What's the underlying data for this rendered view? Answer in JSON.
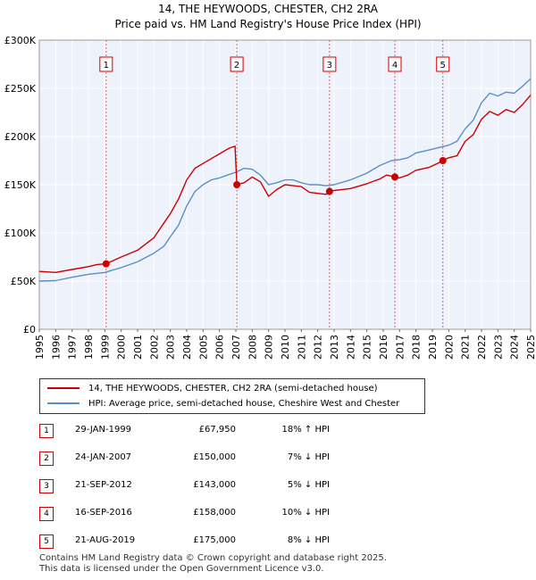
{
  "header": {
    "title": "14, THE HEYWOODS, CHESTER, CH2 2RA",
    "subtitle": "Price paid vs. HM Land Registry's House Price Index (HPI)"
  },
  "chart_data": {
    "type": "line",
    "title": "14, THE HEYWOODS, CHESTER, CH2 2RA",
    "subtitle": "Price paid vs. HM Land Registry's House Price Index (HPI)",
    "xlim": [
      1995,
      2025
    ],
    "ylim": [
      0,
      300000
    ],
    "y_ticks": [
      {
        "value": 0,
        "label": "£0"
      },
      {
        "value": 50000,
        "label": "£50K"
      },
      {
        "value": 100000,
        "label": "£100K"
      },
      {
        "value": 150000,
        "label": "£150K"
      },
      {
        "value": 200000,
        "label": "£200K"
      },
      {
        "value": 250000,
        "label": "£250K"
      },
      {
        "value": 300000,
        "label": "£300K"
      }
    ],
    "x_ticks": [
      "1995",
      "1996",
      "1997",
      "1998",
      "1999",
      "2000",
      "2001",
      "2002",
      "2003",
      "2004",
      "2005",
      "2006",
      "2007",
      "2008",
      "2009",
      "2010",
      "2011",
      "2012",
      "2013",
      "2014",
      "2015",
      "2016",
      "2017",
      "2018",
      "2019",
      "2020",
      "2021",
      "2022",
      "2023",
      "2024",
      "2025"
    ],
    "series": [
      {
        "name": "14, THE HEYWOODS, CHESTER, CH2 2RA (semi-detached house)",
        "color": "#cc0000",
        "points": [
          [
            1995,
            60000
          ],
          [
            1996,
            59000
          ],
          [
            1997,
            62000
          ],
          [
            1998,
            65000
          ],
          [
            1998.5,
            67000
          ],
          [
            1999.08,
            67950
          ],
          [
            2000,
            75000
          ],
          [
            2001,
            82000
          ],
          [
            2002,
            95000
          ],
          [
            2002.6,
            110000
          ],
          [
            2003,
            120000
          ],
          [
            2003.5,
            135000
          ],
          [
            2004,
            155000
          ],
          [
            2004.5,
            167000
          ],
          [
            2005,
            172000
          ],
          [
            2005.5,
            177000
          ],
          [
            2006,
            182000
          ],
          [
            2006.6,
            188000
          ],
          [
            2006.95,
            190000
          ],
          [
            2007.06,
            150000
          ],
          [
            2007.5,
            152000
          ],
          [
            2008,
            158000
          ],
          [
            2008.5,
            153000
          ],
          [
            2009,
            138000
          ],
          [
            2009.5,
            145000
          ],
          [
            2010,
            150000
          ],
          [
            2010.5,
            149000
          ],
          [
            2011,
            148000
          ],
          [
            2011.5,
            142000
          ],
          [
            2012,
            141000
          ],
          [
            2012.5,
            140000
          ],
          [
            2012.72,
            143000
          ],
          [
            2013,
            144000
          ],
          [
            2014,
            146000
          ],
          [
            2015,
            151000
          ],
          [
            2015.8,
            156000
          ],
          [
            2016.2,
            160000
          ],
          [
            2016.71,
            158000
          ],
          [
            2017,
            157000
          ],
          [
            2017.5,
            160000
          ],
          [
            2018,
            165000
          ],
          [
            2018.8,
            168000
          ],
          [
            2019.3,
            172000
          ],
          [
            2019.64,
            175000
          ],
          [
            2020,
            178000
          ],
          [
            2020.5,
            180000
          ],
          [
            2021,
            195000
          ],
          [
            2021.5,
            202000
          ],
          [
            2022,
            218000
          ],
          [
            2022.5,
            226000
          ],
          [
            2023,
            222000
          ],
          [
            2023.5,
            228000
          ],
          [
            2024,
            225000
          ],
          [
            2024.5,
            233000
          ],
          [
            2025,
            243000
          ]
        ]
      },
      {
        "name": "HPI: Average price, semi-detached house, Cheshire West and Chester",
        "color": "#5b8ec9",
        "points": [
          [
            1995,
            50000
          ],
          [
            1996,
            50500
          ],
          [
            1997,
            54000
          ],
          [
            1998,
            57000
          ],
          [
            1999,
            59000
          ],
          [
            2000,
            64000
          ],
          [
            2001,
            70000
          ],
          [
            2002,
            79000
          ],
          [
            2002.6,
            86000
          ],
          [
            2003,
            96000
          ],
          [
            2003.5,
            108000
          ],
          [
            2004,
            128000
          ],
          [
            2004.5,
            143000
          ],
          [
            2005,
            150000
          ],
          [
            2005.5,
            155000
          ],
          [
            2006,
            157000
          ],
          [
            2006.5,
            160000
          ],
          [
            2007,
            163000
          ],
          [
            2007.5,
            167000
          ],
          [
            2008,
            166000
          ],
          [
            2008.5,
            160000
          ],
          [
            2009,
            150000
          ],
          [
            2009.5,
            152000
          ],
          [
            2010,
            155000
          ],
          [
            2010.5,
            155000
          ],
          [
            2011,
            152000
          ],
          [
            2011.5,
            150000
          ],
          [
            2012,
            150000
          ],
          [
            2012.5,
            149000
          ],
          [
            2013,
            150000
          ],
          [
            2014,
            155000
          ],
          [
            2015,
            162000
          ],
          [
            2015.8,
            170000
          ],
          [
            2016.5,
            175000
          ],
          [
            2017,
            176000
          ],
          [
            2017.5,
            178000
          ],
          [
            2018,
            183000
          ],
          [
            2018.8,
            186000
          ],
          [
            2019.5,
            189000
          ],
          [
            2020,
            191000
          ],
          [
            2020.5,
            195000
          ],
          [
            2021,
            208000
          ],
          [
            2021.5,
            217000
          ],
          [
            2022,
            235000
          ],
          [
            2022.5,
            245000
          ],
          [
            2023,
            242000
          ],
          [
            2023.5,
            246000
          ],
          [
            2024,
            245000
          ],
          [
            2024.5,
            252000
          ],
          [
            2025,
            260000
          ]
        ]
      }
    ],
    "markers": [
      {
        "label": "1",
        "x": 1999.08,
        "y": 67950
      },
      {
        "label": "2",
        "x": 2007.06,
        "y": 150000
      },
      {
        "label": "3",
        "x": 2012.72,
        "y": 143000
      },
      {
        "label": "4",
        "x": 2016.71,
        "y": 158000
      },
      {
        "label": "5",
        "x": 2019.64,
        "y": 175000
      }
    ]
  },
  "legend": {
    "property": "14, THE HEYWOODS, CHESTER, CH2 2RA (semi-detached house)",
    "hpi": "HPI: Average price, semi-detached house, Cheshire West and Chester"
  },
  "sales": [
    {
      "num": "1",
      "date": "29-JAN-1999",
      "price": "£67,950",
      "hpi": "18% ↑ HPI"
    },
    {
      "num": "2",
      "date": "24-JAN-2007",
      "price": "£150,000",
      "hpi": "7% ↓ HPI"
    },
    {
      "num": "3",
      "date": "21-SEP-2012",
      "price": "£143,000",
      "hpi": "5% ↓ HPI"
    },
    {
      "num": "4",
      "date": "16-SEP-2016",
      "price": "£158,000",
      "hpi": "10% ↓ HPI"
    },
    {
      "num": "5",
      "date": "21-AUG-2019",
      "price": "£175,000",
      "hpi": "8% ↓ HPI"
    }
  ],
  "footer": {
    "line1": "Contains HM Land Registry data © Crown copyright and database right 2025.",
    "line2": "This data is licensed under the Open Government Licence v3.0."
  }
}
